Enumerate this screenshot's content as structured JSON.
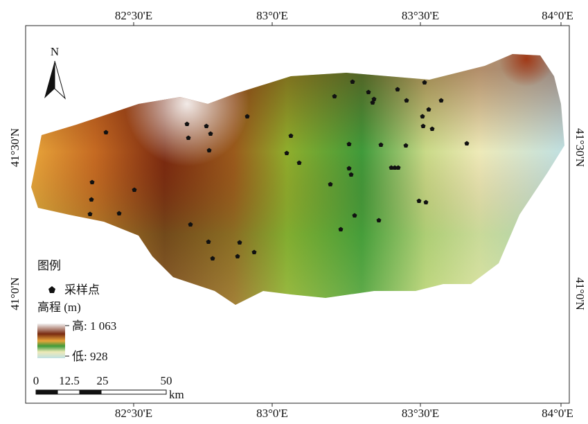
{
  "map": {
    "x_labels": [
      "82°30'E",
      "83°0'E",
      "83°30'E",
      "84°0'E"
    ],
    "y_labels": [
      "41°30'N",
      "41°0'N"
    ],
    "north": "N",
    "legend": {
      "title": "图例",
      "point_label": "采样点",
      "elevation_title": "高程 (m)",
      "high": "高: 1 063",
      "low": "低: 928"
    },
    "scale_bar": {
      "labels": [
        "0",
        "12.5",
        "25",
        "50"
      ],
      "unit": "km"
    }
  }
}
